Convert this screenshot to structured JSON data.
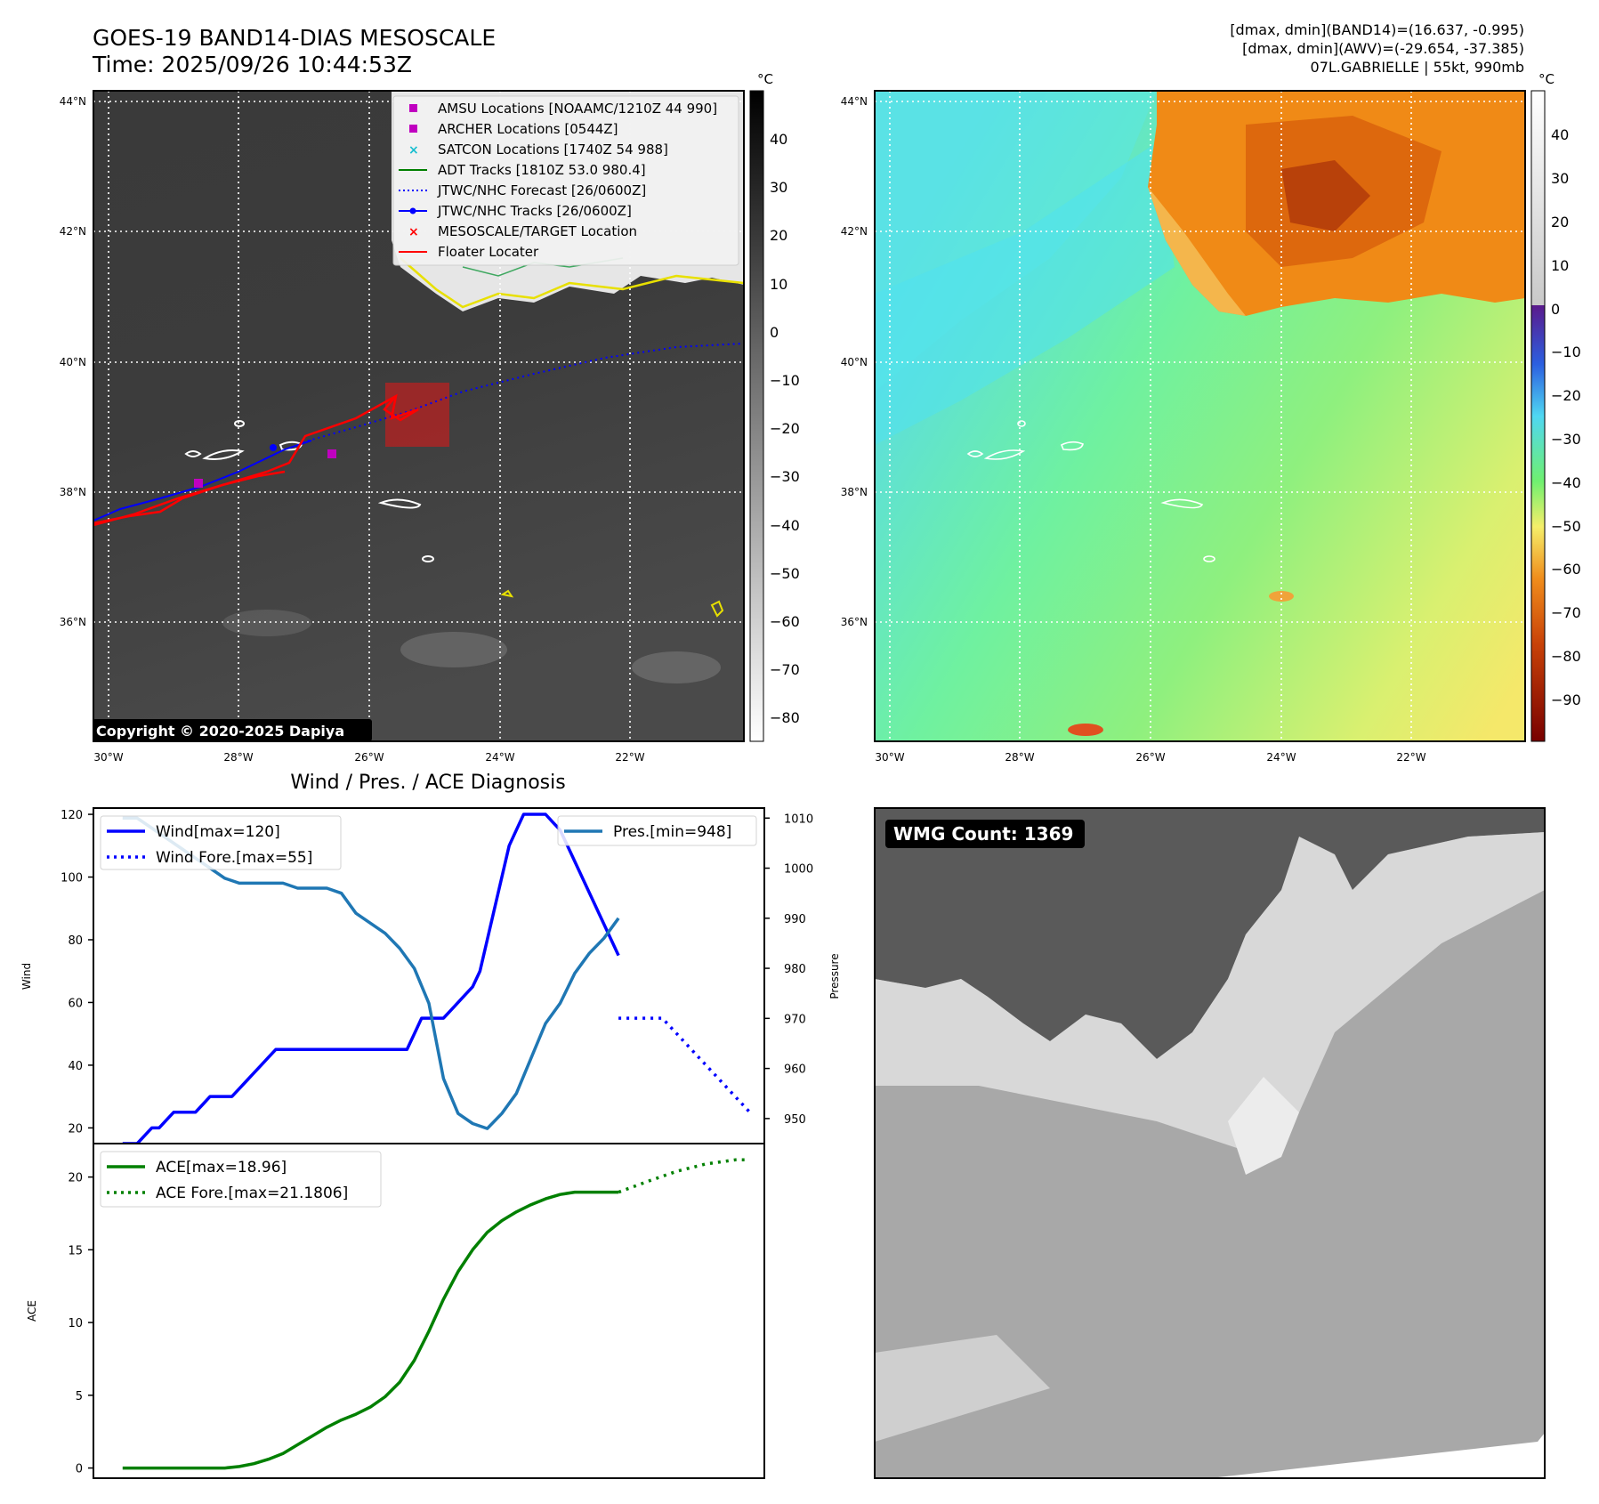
{
  "header": {
    "title_line1": "GOES-19 BAND14-DIAS MESOSCALE",
    "title_line2": "Time: 2025/09/26 10:44:53Z",
    "stats_line1": "[dmax, dmin](BAND14)=(16.637, -0.995)",
    "stats_line2": "[dmax, dmin](AWV)=(-29.654, -37.385)",
    "stats_line3": "07L.GABRIELLE | 55kt, 990mb"
  },
  "copyright": "Copyright © 2020-2025 Dapiya",
  "map": {
    "lat_labels": [
      "44°N",
      "42°N",
      "40°N",
      "38°N",
      "36°N"
    ],
    "lon_labels": [
      "30°W",
      "28°W",
      "26°W",
      "24°W",
      "22°W"
    ],
    "colorbar_unit": "°C",
    "left_colorbar_ticks": [
      "40",
      "30",
      "20",
      "10",
      "0",
      "−10",
      "−20",
      "−30",
      "−40",
      "−50",
      "−60",
      "−70",
      "−80"
    ],
    "right_colorbar_ticks": [
      "40",
      "30",
      "20",
      "10",
      "0",
      "−10",
      "−20",
      "−30",
      "−40",
      "−50",
      "−60",
      "−70",
      "−80",
      "−90"
    ]
  },
  "legend": {
    "items": [
      {
        "label": "AMSU Locations [NOAAMC/1210Z 44 990]",
        "marker": "square",
        "color": "#c000c0"
      },
      {
        "label": "ARCHER Locations [0544Z]",
        "marker": "square",
        "color": "#c000c0"
      },
      {
        "label": "SATCON Locations [1740Z 54 988]",
        "marker": "x",
        "color": "#17becf"
      },
      {
        "label": "ADT Tracks [1810Z 53.0 980.4]",
        "marker": "line",
        "color": "#008000"
      },
      {
        "label": "JTWC/NHC Forecast [26/0600Z]",
        "marker": "dotted",
        "color": "#0000ff"
      },
      {
        "label": "JTWC/NHC Tracks [26/0600Z]",
        "marker": "line-dot",
        "color": "#0000ff"
      },
      {
        "label": "MESOSCALE/TARGET Location",
        "marker": "x",
        "color": "#ff0000"
      },
      {
        "label": "Floater Locater",
        "marker": "line",
        "color": "#ff0000"
      }
    ]
  },
  "diagnosis": {
    "title": "Wind / Pres. / ACE Diagnosis",
    "wind_axis_label": "Wind",
    "pressure_axis_label": "Pressure",
    "ace_axis_label": "ACE",
    "legend_wind": "Wind[max=120]",
    "legend_wind_fore": "Wind Fore.[max=55]",
    "legend_pres": "Pres.[min=948]",
    "legend_ace": "ACE[max=18.96]",
    "legend_ace_fore": "ACE Fore.[max=21.1806]"
  },
  "wmg": {
    "label": "WMG Count: 1369"
  },
  "chart_data": [
    {
      "type": "line",
      "title": "Wind / Pres. / ACE Diagnosis",
      "ylabel": "Wind",
      "ylim": [
        15,
        122
      ],
      "yticks": [
        20,
        40,
        60,
        80,
        100,
        120
      ],
      "xlim": [
        -2,
        44
      ],
      "series": [
        {
          "name": "Wind[max=120]",
          "style": "solid",
          "color": "#0000ff",
          "x": [
            0,
            1,
            1.5,
            2,
            2.5,
            3,
            3.5,
            4,
            4.5,
            5,
            5.5,
            6,
            6.5,
            7,
            7.5,
            8,
            8.5,
            9,
            9.5,
            10,
            10.5,
            11,
            11.5,
            12,
            12.5,
            13,
            13.5,
            14,
            14.5,
            15,
            15.5,
            16,
            16.5,
            17,
            17.5,
            18,
            18.5,
            19,
            19.5,
            20,
            20.5,
            21,
            21.5,
            22,
            22.5,
            23,
            23.5,
            24,
            24.5,
            25,
            25.5,
            26,
            26.5,
            27,
            27.5,
            28,
            28.5,
            29,
            29.5,
            30,
            30.5,
            31,
            31.5,
            32,
            32.5,
            33,
            33.5,
            34
          ],
          "values": [
            15,
            15,
            17.5,
            20,
            20,
            22.5,
            25,
            25,
            25,
            25,
            27.5,
            30,
            30,
            30,
            30,
            32.5,
            35,
            37.5,
            40,
            42.5,
            45,
            45,
            45,
            45,
            45,
            45,
            45,
            45,
            45,
            45,
            45,
            45,
            45,
            45,
            45,
            45,
            45,
            45,
            45,
            50,
            55,
            55,
            55,
            55,
            57.5,
            60,
            62.5,
            65,
            70,
            80,
            90,
            100,
            110,
            115,
            120,
            120,
            120,
            120,
            117.5,
            115,
            110,
            105,
            100,
            95,
            90,
            85,
            80,
            75
          ]
        },
        {
          "name": "Wind Fore.[max=55]",
          "style": "dotted",
          "color": "#0000ff",
          "x": [
            34,
            35,
            36,
            37,
            38,
            39,
            40,
            41,
            42,
            43
          ],
          "values": [
            55,
            55,
            55,
            55,
            50,
            45,
            40,
            35,
            30,
            25
          ]
        },
        {
          "name": "Pres.[min=948]",
          "style": "solid",
          "color": "#1f77b4",
          "axis": "right",
          "ylim": [
            945,
            1012
          ],
          "yticks": [
            950,
            960,
            970,
            980,
            990,
            1000,
            1010
          ],
          "x": [
            0,
            1,
            2,
            3,
            4,
            5,
            6,
            7,
            8,
            9,
            10,
            11,
            12,
            13,
            14,
            15,
            16,
            17,
            18,
            19,
            20,
            21,
            22,
            23,
            24,
            25,
            26,
            27,
            28,
            29,
            30,
            31,
            32,
            33,
            34
          ],
          "values": [
            1010,
            1010,
            1008,
            1006,
            1004,
            1002,
            1000,
            998,
            997,
            997,
            997,
            997,
            996,
            996,
            996,
            995,
            991,
            989,
            987,
            984,
            980,
            973,
            958,
            951,
            949,
            948,
            951,
            955,
            962,
            969,
            973,
            979,
            983,
            986,
            990
          ]
        }
      ]
    },
    {
      "type": "line",
      "ylabel": "ACE",
      "ylim": [
        -0.7,
        22.3
      ],
      "yticks": [
        0,
        5,
        10,
        15,
        20
      ],
      "xlim": [
        -2,
        44
      ],
      "series": [
        {
          "name": "ACE[max=18.96]",
          "style": "solid",
          "color": "#008000",
          "x": [
            0,
            2,
            4,
            6,
            7,
            8,
            9,
            10,
            11,
            12,
            13,
            14,
            15,
            16,
            17,
            18,
            19,
            20,
            21,
            22,
            23,
            24,
            25,
            26,
            27,
            28,
            29,
            30,
            31,
            32,
            33,
            34
          ],
          "values": [
            0,
            0,
            0,
            0,
            0,
            0.1,
            0.3,
            0.6,
            1,
            1.6,
            2.2,
            2.8,
            3.3,
            3.7,
            4.2,
            4.9,
            5.9,
            7.4,
            9.4,
            11.6,
            13.5,
            15.0,
            16.2,
            17.0,
            17.6,
            18.1,
            18.5,
            18.8,
            18.96,
            18.96,
            18.96,
            18.96
          ]
        },
        {
          "name": "ACE Fore.[max=21.1806]",
          "style": "dotted",
          "color": "#008000",
          "x": [
            34,
            36,
            38,
            40,
            42,
            43
          ],
          "values": [
            18.96,
            19.7,
            20.4,
            20.9,
            21.1806,
            21.1806
          ]
        }
      ]
    }
  ]
}
